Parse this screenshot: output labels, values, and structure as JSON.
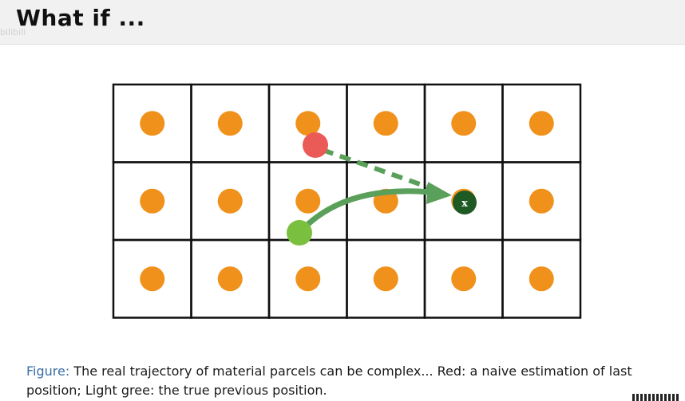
{
  "title": "What if ...",
  "watermark": "bilibili",
  "caption": {
    "label": "Figure:",
    "text": " The real trajectory of material parcels can be complex... Red: a naive estimation of last position; Light gree: the true previous position."
  },
  "diagram": {
    "grid_rows": 3,
    "grid_cols": 6,
    "cell_marker": "orange-dot",
    "current_marker_label": "x",
    "colors": {
      "grid_line": "#111111",
      "cell_dot": "#f0911c",
      "naive_estimate": "#ea5a57",
      "true_previous": "#7bbf3f",
      "trajectory": "#5aa05a",
      "current_position": "#1e5a24",
      "figure_label": "#3a6fa8"
    }
  }
}
